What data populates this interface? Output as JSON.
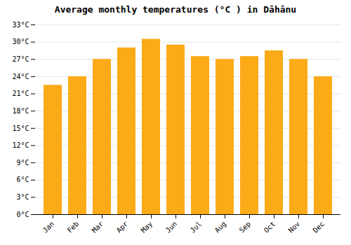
{
  "chart_data": {
    "type": "bar",
    "title": "Average monthly temperatures (°C ) in Dāhānu",
    "categories": [
      "Jan",
      "Feb",
      "Mar",
      "Apr",
      "May",
      "Jun",
      "Jul",
      "Aug",
      "Sep",
      "Oct",
      "Nov",
      "Dec"
    ],
    "values": [
      22.5,
      24.0,
      27.0,
      29.0,
      30.5,
      29.5,
      27.5,
      27.0,
      27.5,
      28.5,
      27.0,
      24.0
    ],
    "color": "#FBAB18",
    "ylim": [
      0,
      33
    ],
    "yticks": [
      {
        "value": 0,
        "label": "0°C"
      },
      {
        "value": 3,
        "label": "3°C"
      },
      {
        "value": 6,
        "label": "6°C"
      },
      {
        "value": 9,
        "label": "9°C"
      },
      {
        "value": 12,
        "label": "12°C"
      },
      {
        "value": 15,
        "label": "15°C"
      },
      {
        "value": 18,
        "label": "18°C"
      },
      {
        "value": 21,
        "label": "21°C"
      },
      {
        "value": 24,
        "label": "24°C"
      },
      {
        "value": 27,
        "label": "27°C"
      },
      {
        "value": 30,
        "label": "30°C"
      },
      {
        "value": 33,
        "label": "33°C"
      }
    ],
    "grid": true
  }
}
